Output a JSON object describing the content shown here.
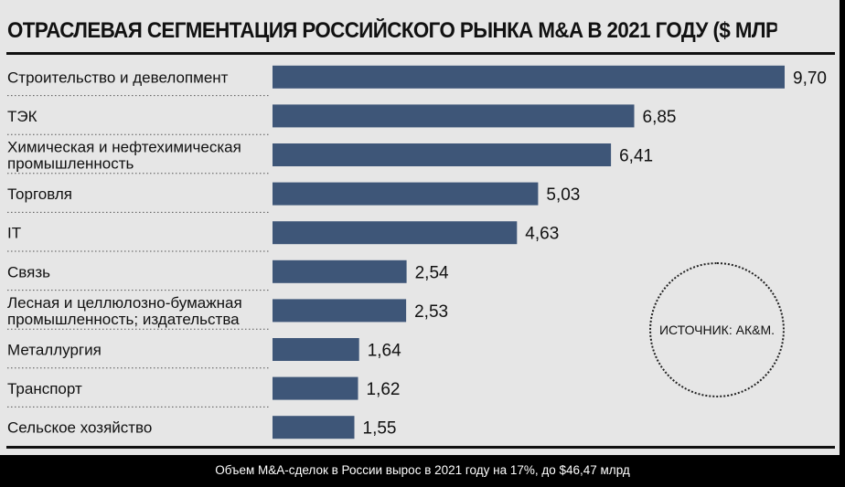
{
  "header": {
    "title": "ОТРАСЛЕВАЯ СЕГМЕНТАЦИЯ РОССИЙСКОГО РЫНКА M&A В 2021 ГОДУ ($ МЛРД)"
  },
  "source": "ИСТОЧНИК: АК&М.",
  "caption": "Объем M&A-сделок в России вырос в 2021 году на 17%, до $46,47 млрд",
  "colors": {
    "bar": "#3e5678",
    "panel": "#e6e6e6",
    "page": "#000000"
  },
  "chart_data": {
    "type": "bar",
    "orientation": "horizontal",
    "title": "ОТРАСЛЕВАЯ СЕГМЕНТАЦИЯ РОССИЙСКОГО РЫНКА M&A В 2021 ГОДУ ($ МЛРД)",
    "xlim": [
      0,
      9.7
    ],
    "grid": false,
    "categories": [
      [
        "Строительство и девелопмент"
      ],
      [
        "ТЭК"
      ],
      [
        "Химическая и нефтехимическая",
        "промышленность"
      ],
      [
        "Торговля"
      ],
      [
        "IT"
      ],
      [
        "Связь"
      ],
      [
        "Лесная и целлюлозно-бумажная",
        "промышленность; издательства"
      ],
      [
        "Металлургия"
      ],
      [
        "Транспорт"
      ],
      [
        "Сельское хозяйство"
      ]
    ],
    "values": [
      9.7,
      6.85,
      6.41,
      5.03,
      4.63,
      2.54,
      2.53,
      1.64,
      1.62,
      1.55
    ],
    "value_labels": [
      "9,70",
      "6,85",
      "6,41",
      "5,03",
      "4,63",
      "2,54",
      "2,53",
      "1,64",
      "1,62",
      "1,55"
    ]
  }
}
